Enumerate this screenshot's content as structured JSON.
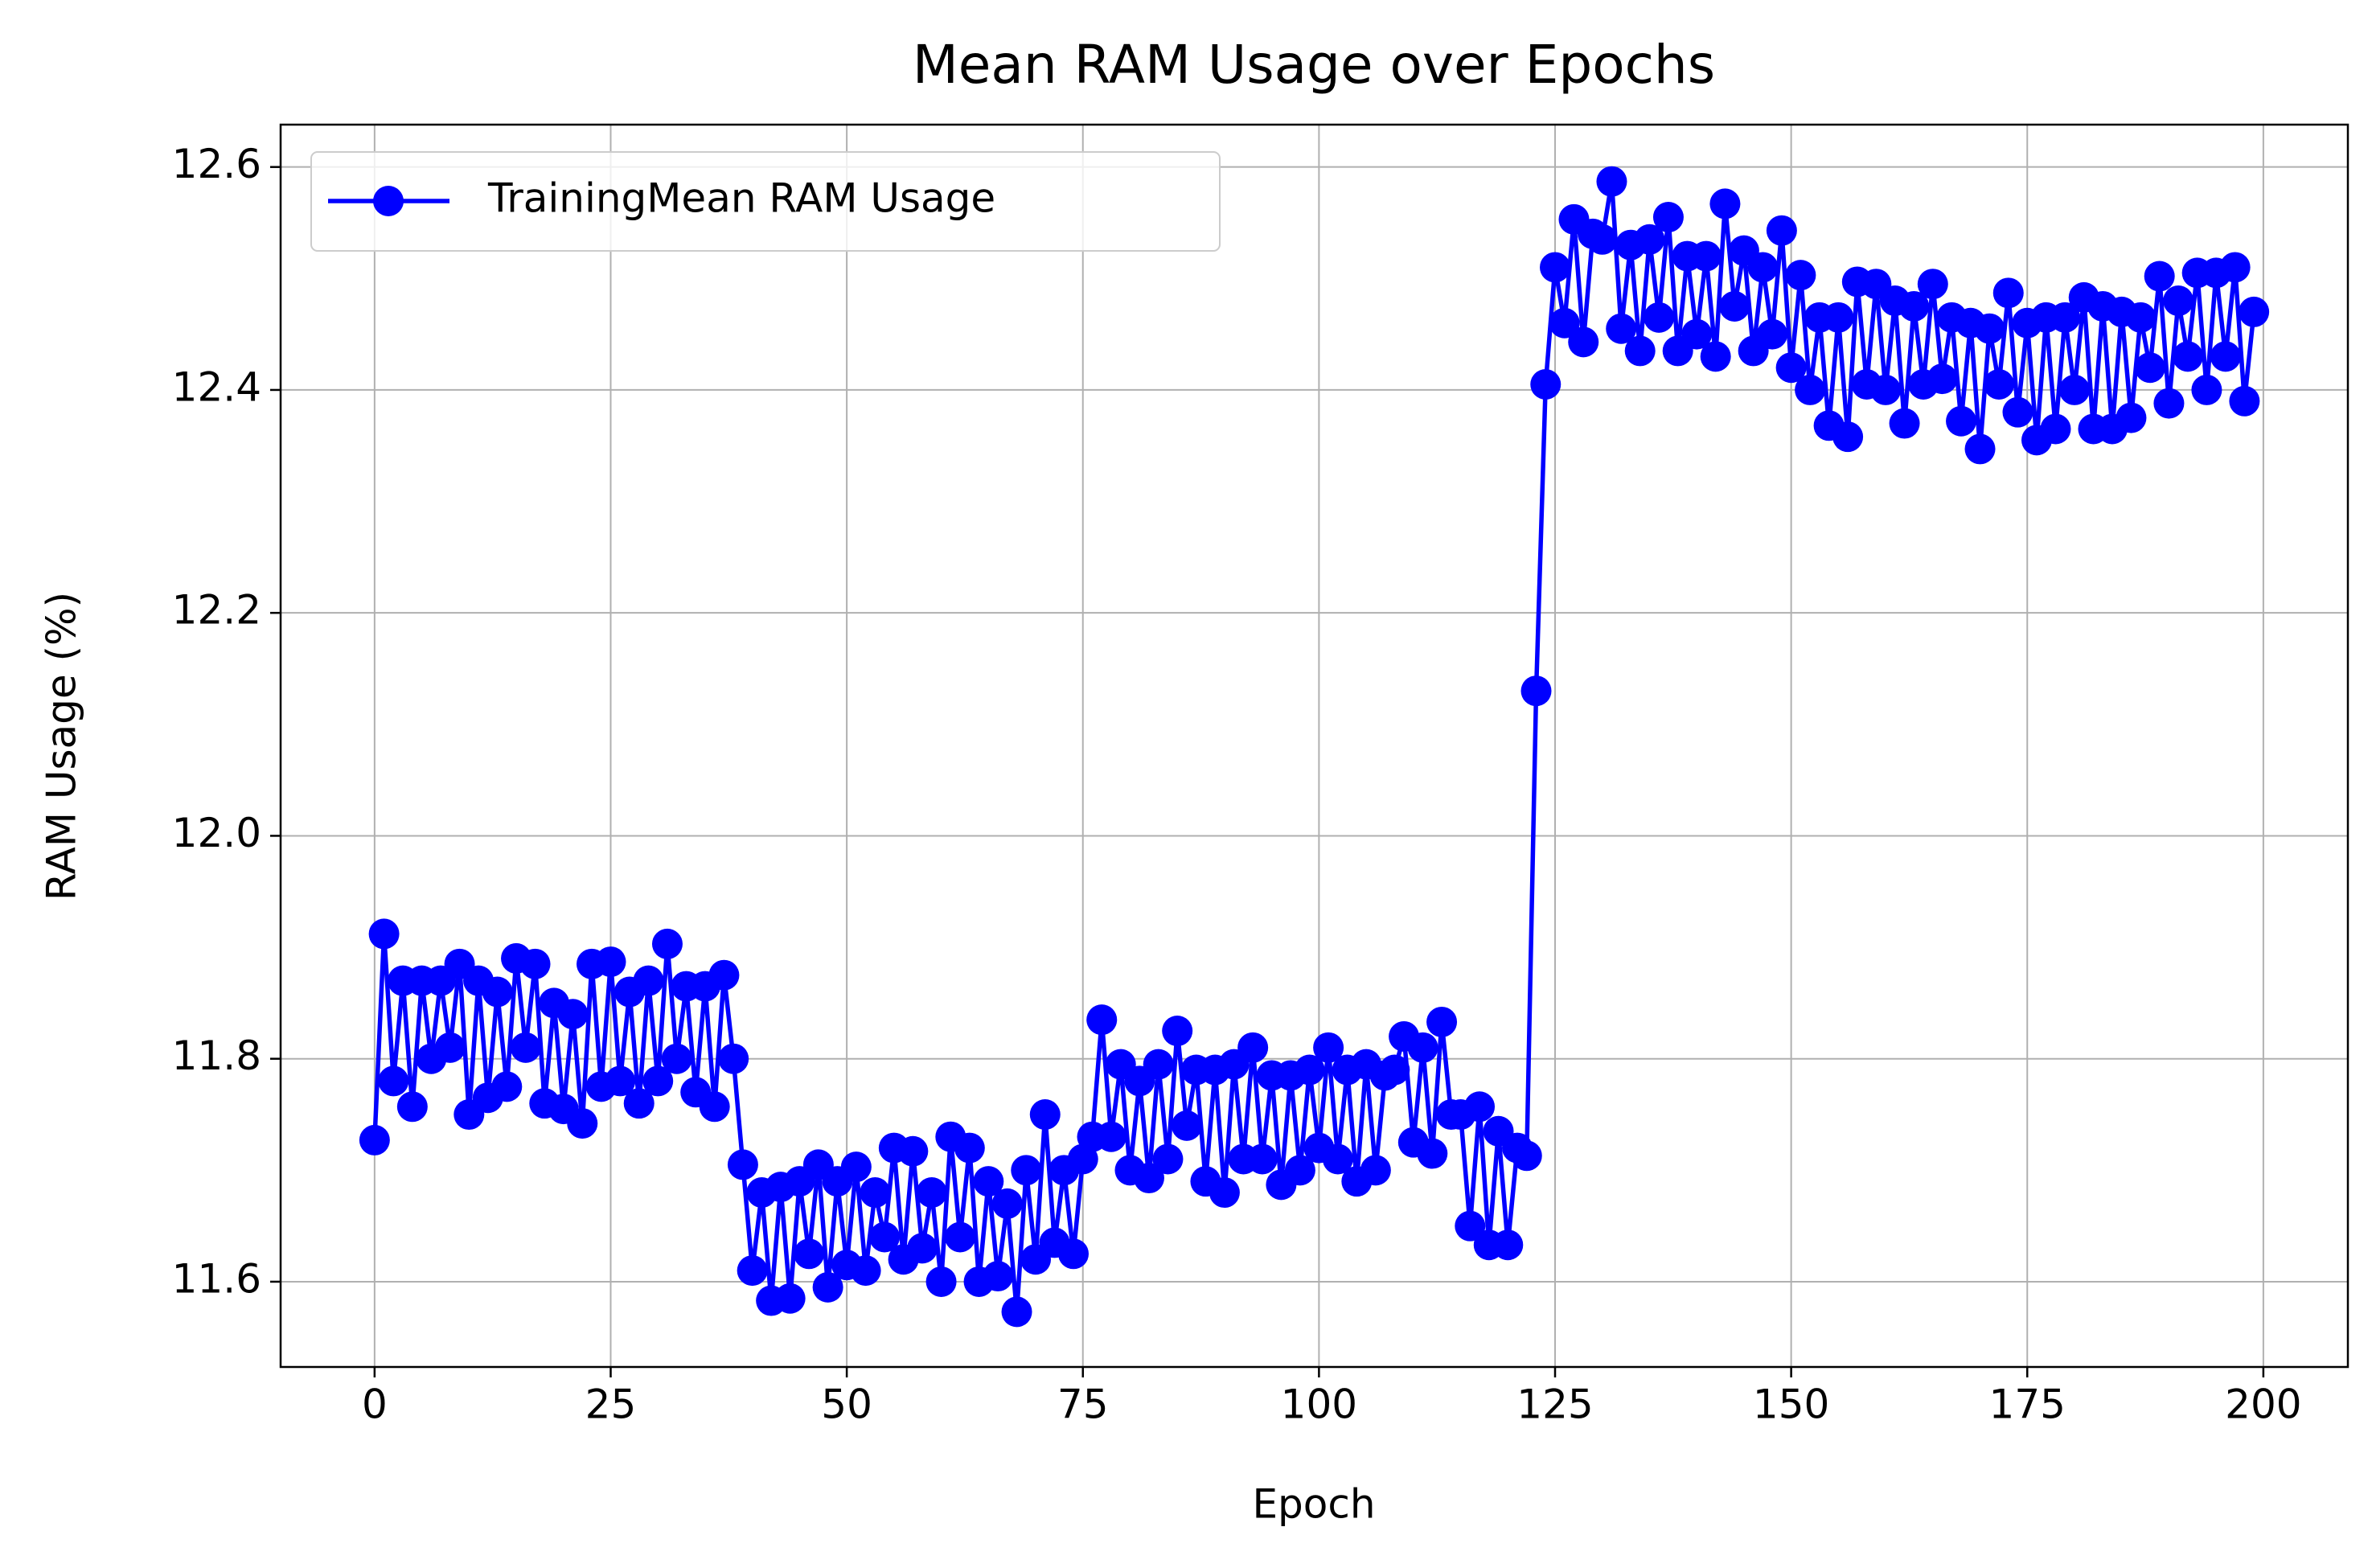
{
  "chart_data": {
    "type": "line",
    "title": "Mean RAM Usage over Epochs",
    "xlabel": "Epoch",
    "ylabel": "RAM Usage (%)",
    "x": [
      0,
      1,
      2,
      3,
      4,
      5,
      6,
      7,
      8,
      9,
      10,
      11,
      12,
      13,
      14,
      15,
      16,
      17,
      18,
      19,
      20,
      21,
      22,
      23,
      24,
      25,
      26,
      27,
      28,
      29,
      30,
      31,
      32,
      33,
      34,
      35,
      36,
      37,
      38,
      39,
      40,
      41,
      42,
      43,
      44,
      45,
      46,
      47,
      48,
      49,
      50,
      51,
      52,
      53,
      54,
      55,
      56,
      57,
      58,
      59,
      60,
      61,
      62,
      63,
      64,
      65,
      66,
      67,
      68,
      69,
      70,
      71,
      72,
      73,
      74,
      75,
      76,
      77,
      78,
      79,
      80,
      81,
      82,
      83,
      84,
      85,
      86,
      87,
      88,
      89,
      90,
      91,
      92,
      93,
      94,
      95,
      96,
      97,
      98,
      99,
      100,
      101,
      102,
      103,
      104,
      105,
      106,
      107,
      108,
      109,
      110,
      111,
      112,
      113,
      114,
      115,
      116,
      117,
      118,
      119,
      120,
      121,
      122,
      123,
      124,
      125,
      126,
      127,
      128,
      129,
      130,
      131,
      132,
      133,
      134,
      135,
      136,
      137,
      138,
      139,
      140,
      141,
      142,
      143,
      144,
      145,
      146,
      147,
      148,
      149,
      150,
      151,
      152,
      153,
      154,
      155,
      156,
      157,
      158,
      159,
      160,
      161,
      162,
      163,
      164,
      165,
      166,
      167,
      168,
      169,
      170,
      171,
      172,
      173,
      174,
      175,
      176,
      177,
      178,
      179,
      180,
      181,
      182,
      183,
      184,
      185,
      186,
      187,
      188,
      189,
      190,
      191,
      192,
      193,
      194,
      195,
      196,
      197,
      198,
      199
    ],
    "series": [
      {
        "name": "TrainingMean RAM Usage",
        "color": "#0000ff",
        "values": [
          11.727,
          11.912,
          11.78,
          11.87,
          11.757,
          11.87,
          11.8,
          11.87,
          11.81,
          11.885,
          11.75,
          11.87,
          11.765,
          11.86,
          11.775,
          11.89,
          11.81,
          11.885,
          11.76,
          11.85,
          11.755,
          11.84,
          11.742,
          11.885,
          11.775,
          11.887,
          11.78,
          11.86,
          11.76,
          11.87,
          11.78,
          11.903,
          11.8,
          11.865,
          11.77,
          11.865,
          11.757,
          11.875,
          11.8,
          11.705,
          11.61,
          11.68,
          11.583,
          11.685,
          11.585,
          11.69,
          11.625,
          11.705,
          11.595,
          11.69,
          11.615,
          11.703,
          11.61,
          11.68,
          11.64,
          11.72,
          11.62,
          11.717,
          11.63,
          11.68,
          11.6,
          11.73,
          11.64,
          11.72,
          11.6,
          11.69,
          11.605,
          11.67,
          11.573,
          11.7,
          11.62,
          11.75,
          11.635,
          11.7,
          11.625,
          11.71,
          11.73,
          11.835,
          11.73,
          11.795,
          11.7,
          11.78,
          11.693,
          11.795,
          11.71,
          11.825,
          11.74,
          11.79,
          11.69,
          11.79,
          11.68,
          11.795,
          11.71,
          11.81,
          11.71,
          11.785,
          11.687,
          11.785,
          11.7,
          11.79,
          11.72,
          11.81,
          11.71,
          11.79,
          11.69,
          11.795,
          11.7,
          11.785,
          11.79,
          11.82,
          11.725,
          11.81,
          11.715,
          11.833,
          11.75,
          11.75,
          11.65,
          11.757,
          11.633,
          11.735,
          11.633,
          11.72,
          11.713,
          12.13,
          12.405,
          12.51,
          12.46,
          12.553,
          12.443,
          12.54,
          12.535,
          12.587,
          12.455,
          12.53,
          12.435,
          12.535,
          12.465,
          12.555,
          12.435,
          12.52,
          12.45,
          12.52,
          12.43,
          12.567,
          12.475,
          12.525,
          12.435,
          12.51,
          12.45,
          12.543,
          12.42,
          12.503,
          12.4,
          12.465,
          12.368,
          12.465,
          12.358,
          12.497,
          12.405,
          12.495,
          12.4,
          12.48,
          12.37,
          12.475,
          12.405,
          12.495,
          12.41,
          12.465,
          12.372,
          12.46,
          12.347,
          12.455,
          12.405,
          12.487,
          12.38,
          12.46,
          12.355,
          12.465,
          12.365,
          12.465,
          12.4,
          12.483,
          12.365,
          12.475,
          12.365,
          12.47,
          12.375,
          12.465,
          12.42,
          12.502,
          12.388,
          12.48,
          12.43,
          12.505,
          12.4,
          12.505,
          12.43,
          12.51,
          12.39,
          12.47
        ]
      }
    ],
    "xlim": [
      -9.95,
      208.95
    ],
    "xticks": [
      0,
      25,
      50,
      75,
      100,
      125,
      150,
      175,
      200
    ],
    "ylim": [
      11.5235,
      12.638
    ],
    "yticks": [
      {
        "value": 11.6,
        "label": "11.6"
      },
      {
        "value": 11.8,
        "label": "11.8"
      },
      {
        "value": 12.0,
        "label": "12.0"
      },
      {
        "value": 12.2,
        "label": "12.2"
      },
      {
        "value": 12.4,
        "label": "12.4"
      },
      {
        "value": 12.6,
        "label": "12.6"
      }
    ],
    "grid": true,
    "legend": "upper left"
  }
}
